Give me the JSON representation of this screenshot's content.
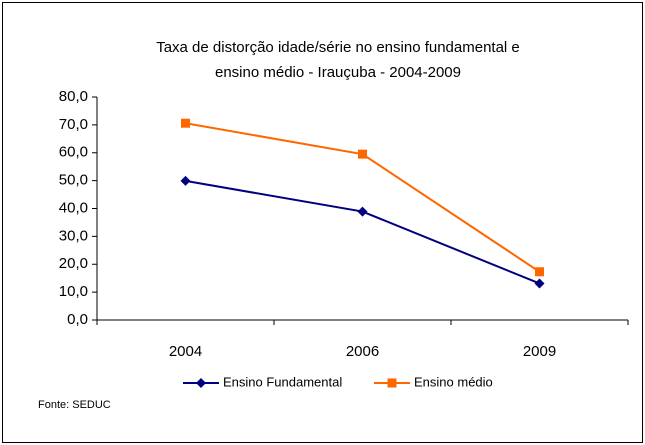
{
  "chart_data": {
    "type": "line",
    "title": [
      "Taxa de distorção idade/série no ensino fundamental e",
      "ensino médio - Irauçuba -  2004-2009"
    ],
    "categories": [
      "2004",
      "2006",
      "2009"
    ],
    "series": [
      {
        "name": "Ensino Fundamental",
        "color": "#000080",
        "marker": "diamond",
        "values": [
          49.9,
          38.9,
          13.1
        ]
      },
      {
        "name": "Ensino médio",
        "color": "#ff6600",
        "marker": "square",
        "values": [
          70.6,
          59.5,
          17.3
        ]
      }
    ],
    "ylim": [
      0,
      80
    ],
    "yticks": [
      {
        "value": 0,
        "label": "0,0"
      },
      {
        "value": 10,
        "label": "10,0"
      },
      {
        "value": 20,
        "label": "20,0"
      },
      {
        "value": 30,
        "label": "30,0"
      },
      {
        "value": 40,
        "label": "40,0"
      },
      {
        "value": 50,
        "label": "50,0"
      },
      {
        "value": 60,
        "label": "60,0"
      },
      {
        "value": 70,
        "label": "70,0"
      },
      {
        "value": 80,
        "label": "80,0"
      }
    ],
    "legend": "bottom",
    "source": "Fonte: SEDUC"
  }
}
